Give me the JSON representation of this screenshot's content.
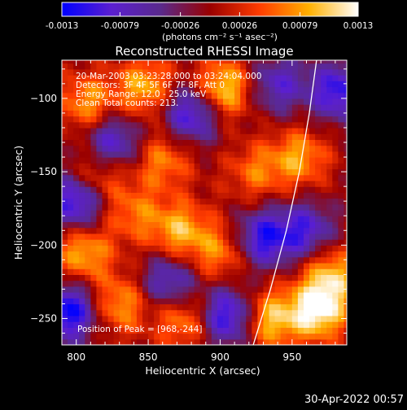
{
  "chart_data": {
    "type": "heatmap",
    "title": "Reconstructed RHESSI Image",
    "xlabel": "Heliocentric X (arcsec)",
    "ylabel": "Heliocentric Y (arcsec)",
    "xlim": [
      790,
      988
    ],
    "ylim": [
      -268,
      -74
    ],
    "x_ticks": [
      800,
      850,
      900,
      950
    ],
    "y_ticks": [
      -100,
      -150,
      -200,
      -250
    ],
    "colorbar": {
      "range": [
        -0.0013,
        0.0013
      ],
      "ticks": [
        "-0.0013",
        "-0.00079",
        "-0.00026",
        "0.00026",
        "0.00079",
        "0.0013"
      ],
      "label": "(photons cm⁻² s⁻¹ asec⁻²)",
      "colors": [
        "#0000ff",
        "#5b1fd0",
        "#5a2a8c",
        "#9a0000",
        "#ff3c00",
        "#ffb000",
        "#ffffff"
      ]
    },
    "annotations": [
      "20-Mar-2003 03:23:28.000 to 03:24:04.000",
      "Detectors: 3F 4F 5F 6F 7F 8F, Att 0",
      "Energy Range: 12.0 - 25.0 keV",
      "Clean     Total counts: 213."
    ],
    "peak_label": "Position of Peak = [968,-244]",
    "peak": [
      968,
      -244
    ],
    "limb_curve": [
      [
        923,
        -268
      ],
      [
        935,
        -230
      ],
      [
        946,
        -190
      ],
      [
        955,
        -150
      ],
      [
        962,
        -110
      ],
      [
        967,
        -74
      ]
    ],
    "hot_spots": [
      {
        "x": 968,
        "y": -244,
        "value": 0.0013
      },
      {
        "x": 902,
        "y": -93,
        "value": 0.0011
      },
      {
        "x": 848,
        "y": -92,
        "value": 0.0009
      },
      {
        "x": 808,
        "y": -103,
        "value": 0.0008
      },
      {
        "x": 872,
        "y": -190,
        "value": 0.0009
      },
      {
        "x": 860,
        "y": -142,
        "value": 0.0007
      },
      {
        "x": 935,
        "y": -250,
        "value": 0.001
      },
      {
        "x": 805,
        "y": -205,
        "value": 0.0009
      },
      {
        "x": 815,
        "y": -152,
        "value": 0.0007
      },
      {
        "x": 830,
        "y": -240,
        "value": 0.0008
      },
      {
        "x": 875,
        "y": -250,
        "value": 0.0008
      },
      {
        "x": 955,
        "y": -140,
        "value": 0.0008
      },
      {
        "x": 978,
        "y": -220,
        "value": 0.0009
      },
      {
        "x": 900,
        "y": -205,
        "value": 0.0007
      },
      {
        "x": 925,
        "y": -150,
        "value": 0.0006
      },
      {
        "x": 840,
        "y": -178,
        "value": 0.0006
      }
    ],
    "cold_spots": [
      {
        "x": 795,
        "y": -245,
        "value": -0.0013
      },
      {
        "x": 800,
        "y": -170,
        "value": -0.0012
      },
      {
        "x": 880,
        "y": -110,
        "value": -0.0011
      },
      {
        "x": 930,
        "y": -195,
        "value": -0.0011
      },
      {
        "x": 905,
        "y": -248,
        "value": -0.0012
      },
      {
        "x": 825,
        "y": -130,
        "value": -0.001
      },
      {
        "x": 960,
        "y": -190,
        "value": -0.0009
      },
      {
        "x": 982,
        "y": -95,
        "value": -0.0011
      },
      {
        "x": 940,
        "y": -90,
        "value": -0.0008
      },
      {
        "x": 865,
        "y": -225,
        "value": -0.0009
      }
    ]
  },
  "timestamp": "30-Apr-2022 00:57"
}
